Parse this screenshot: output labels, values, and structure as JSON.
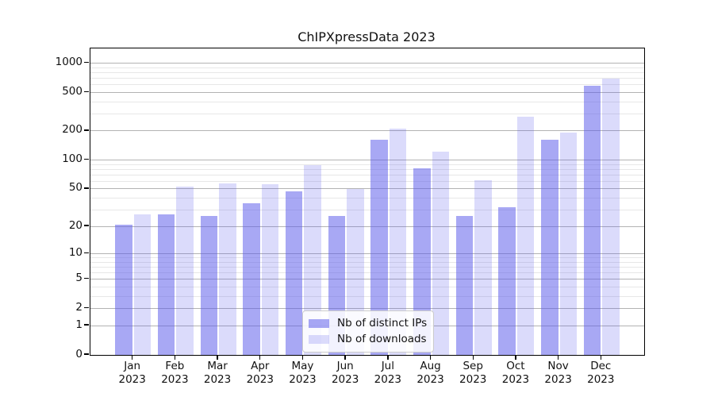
{
  "title": "ChIPXpressData 2023",
  "chart_data": {
    "type": "bar",
    "title": "ChIPXpressData 2023",
    "year": "2023",
    "categories": [
      "Jan",
      "Feb",
      "Mar",
      "Apr",
      "May",
      "Jun",
      "Jul",
      "Aug",
      "Sep",
      "Oct",
      "Nov",
      "Dec"
    ],
    "series": [
      {
        "name": "Nb of distinct IPs",
        "color": "rgba(90,90,235,0.53)",
        "values": [
          21,
          27,
          26,
          35,
          47,
          26,
          163,
          82,
          26,
          32,
          163,
          580
        ]
      },
      {
        "name": "Nb of downloads",
        "color": "rgba(90,90,235,0.22)",
        "values": [
          27,
          53,
          57,
          56,
          88,
          50,
          210,
          122,
          62,
          280,
          194,
          690
        ]
      }
    ],
    "xlabel": "",
    "ylabel": "",
    "yscale": "log1p",
    "ylim": [
      0,
      1400
    ],
    "yticks": [
      0,
      1,
      2,
      5,
      10,
      20,
      50,
      100,
      200,
      500,
      1000
    ],
    "yticks_minor": [
      3,
      4,
      6,
      7,
      8,
      9,
      30,
      40,
      60,
      70,
      80,
      90,
      300,
      400,
      600,
      700,
      800,
      900
    ],
    "grid": true,
    "legend_position": "lower center"
  },
  "colors": {
    "bar_distinct_ips": "rgba(90,90,235,0.53)",
    "bar_downloads": "rgba(90,90,235,0.22)",
    "grid_major": "#b3b3b3",
    "grid_minor": "#e7e7e7",
    "spine": "#000000",
    "text": "#111111"
  }
}
